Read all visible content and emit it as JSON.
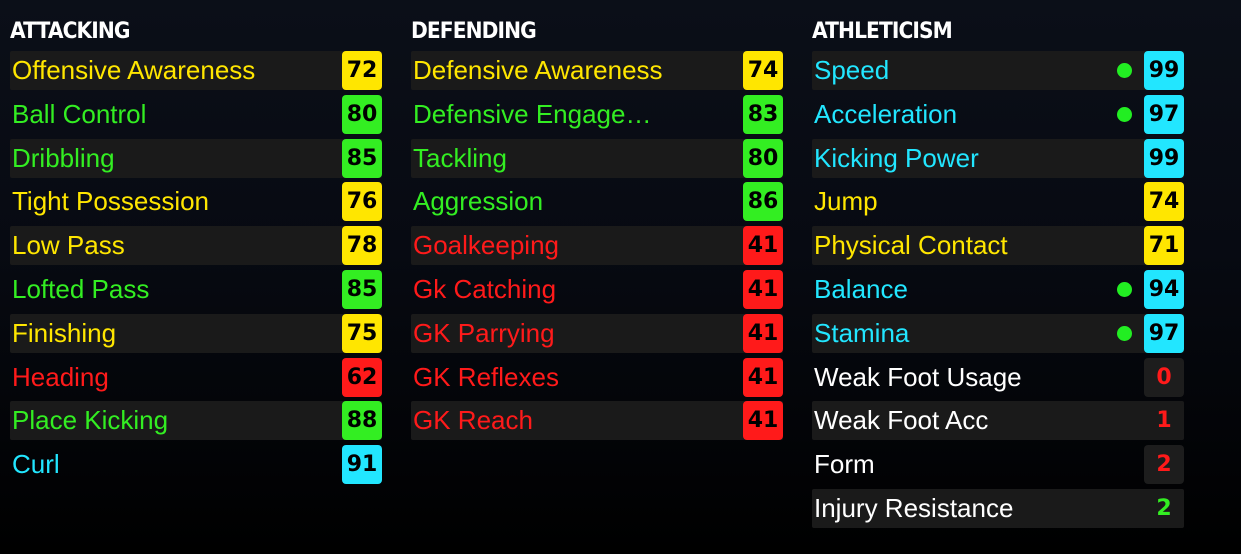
{
  "colors": {
    "yellow": "#ffe600",
    "green": "#33ee22",
    "red": "#ff1a1a",
    "cyan": "#22e6ff",
    "white": "#ffffff",
    "dot": "#22ee22"
  },
  "sections": [
    {
      "id": "attacking",
      "title": "ATTACKING",
      "rows": [
        {
          "label": "Offensive Awareness",
          "value": "72",
          "color": "yellow"
        },
        {
          "label": "Ball Control",
          "value": "80",
          "color": "green"
        },
        {
          "label": "Dribbling",
          "value": "85",
          "color": "green"
        },
        {
          "label": "Tight Possession",
          "value": "76",
          "color": "yellow"
        },
        {
          "label": "Low Pass",
          "value": "78",
          "color": "yellow"
        },
        {
          "label": "Lofted Pass",
          "value": "85",
          "color": "green"
        },
        {
          "label": "Finishing",
          "value": "75",
          "color": "yellow"
        },
        {
          "label": "Heading",
          "value": "62",
          "color": "red"
        },
        {
          "label": "Place Kicking",
          "value": "88",
          "color": "green"
        },
        {
          "label": "Curl",
          "value": "91",
          "color": "cyan"
        }
      ]
    },
    {
      "id": "defending",
      "title": "DEFENDING",
      "rows": [
        {
          "label": "Defensive Awareness",
          "value": "74",
          "color": "yellow"
        },
        {
          "label": "Defensive Engage…",
          "value": "83",
          "color": "green"
        },
        {
          "label": "Tackling",
          "value": "80",
          "color": "green"
        },
        {
          "label": "Aggression",
          "value": "86",
          "color": "green"
        },
        {
          "label": "Goalkeeping",
          "value": "41",
          "color": "red"
        },
        {
          "label": "Gk Catching",
          "value": "41",
          "color": "red"
        },
        {
          "label": "GK Parrying",
          "value": "41",
          "color": "red"
        },
        {
          "label": "GK Reflexes",
          "value": "41",
          "color": "red"
        },
        {
          "label": "GK Reach",
          "value": "41",
          "color": "red"
        }
      ]
    },
    {
      "id": "athleticism",
      "title": "ATHLETICISM",
      "rows": [
        {
          "label": "Speed",
          "value": "99",
          "color": "cyan",
          "dot": true
        },
        {
          "label": "Acceleration",
          "value": "97",
          "color": "cyan",
          "dot": true
        },
        {
          "label": "Kicking Power",
          "value": "99",
          "color": "cyan"
        },
        {
          "label": "Jump",
          "value": "74",
          "color": "yellow"
        },
        {
          "label": "Physical Contact",
          "value": "71",
          "color": "yellow"
        },
        {
          "label": "Balance",
          "value": "94",
          "color": "cyan",
          "dot": true
        },
        {
          "label": "Stamina",
          "value": "97",
          "color": "cyan",
          "dot": true
        },
        {
          "label": "Weak Foot Usage",
          "value": "0",
          "color": "white",
          "value_color": "red",
          "plain": true
        },
        {
          "label": "Weak Foot Acc",
          "value": "1",
          "color": "white",
          "value_color": "red",
          "plain": true
        },
        {
          "label": "Form",
          "value": "2",
          "color": "white",
          "value_color": "red",
          "plain": true
        },
        {
          "label": "Injury Resistance",
          "value": "2",
          "color": "white",
          "value_color": "green",
          "plain": true
        }
      ]
    }
  ]
}
